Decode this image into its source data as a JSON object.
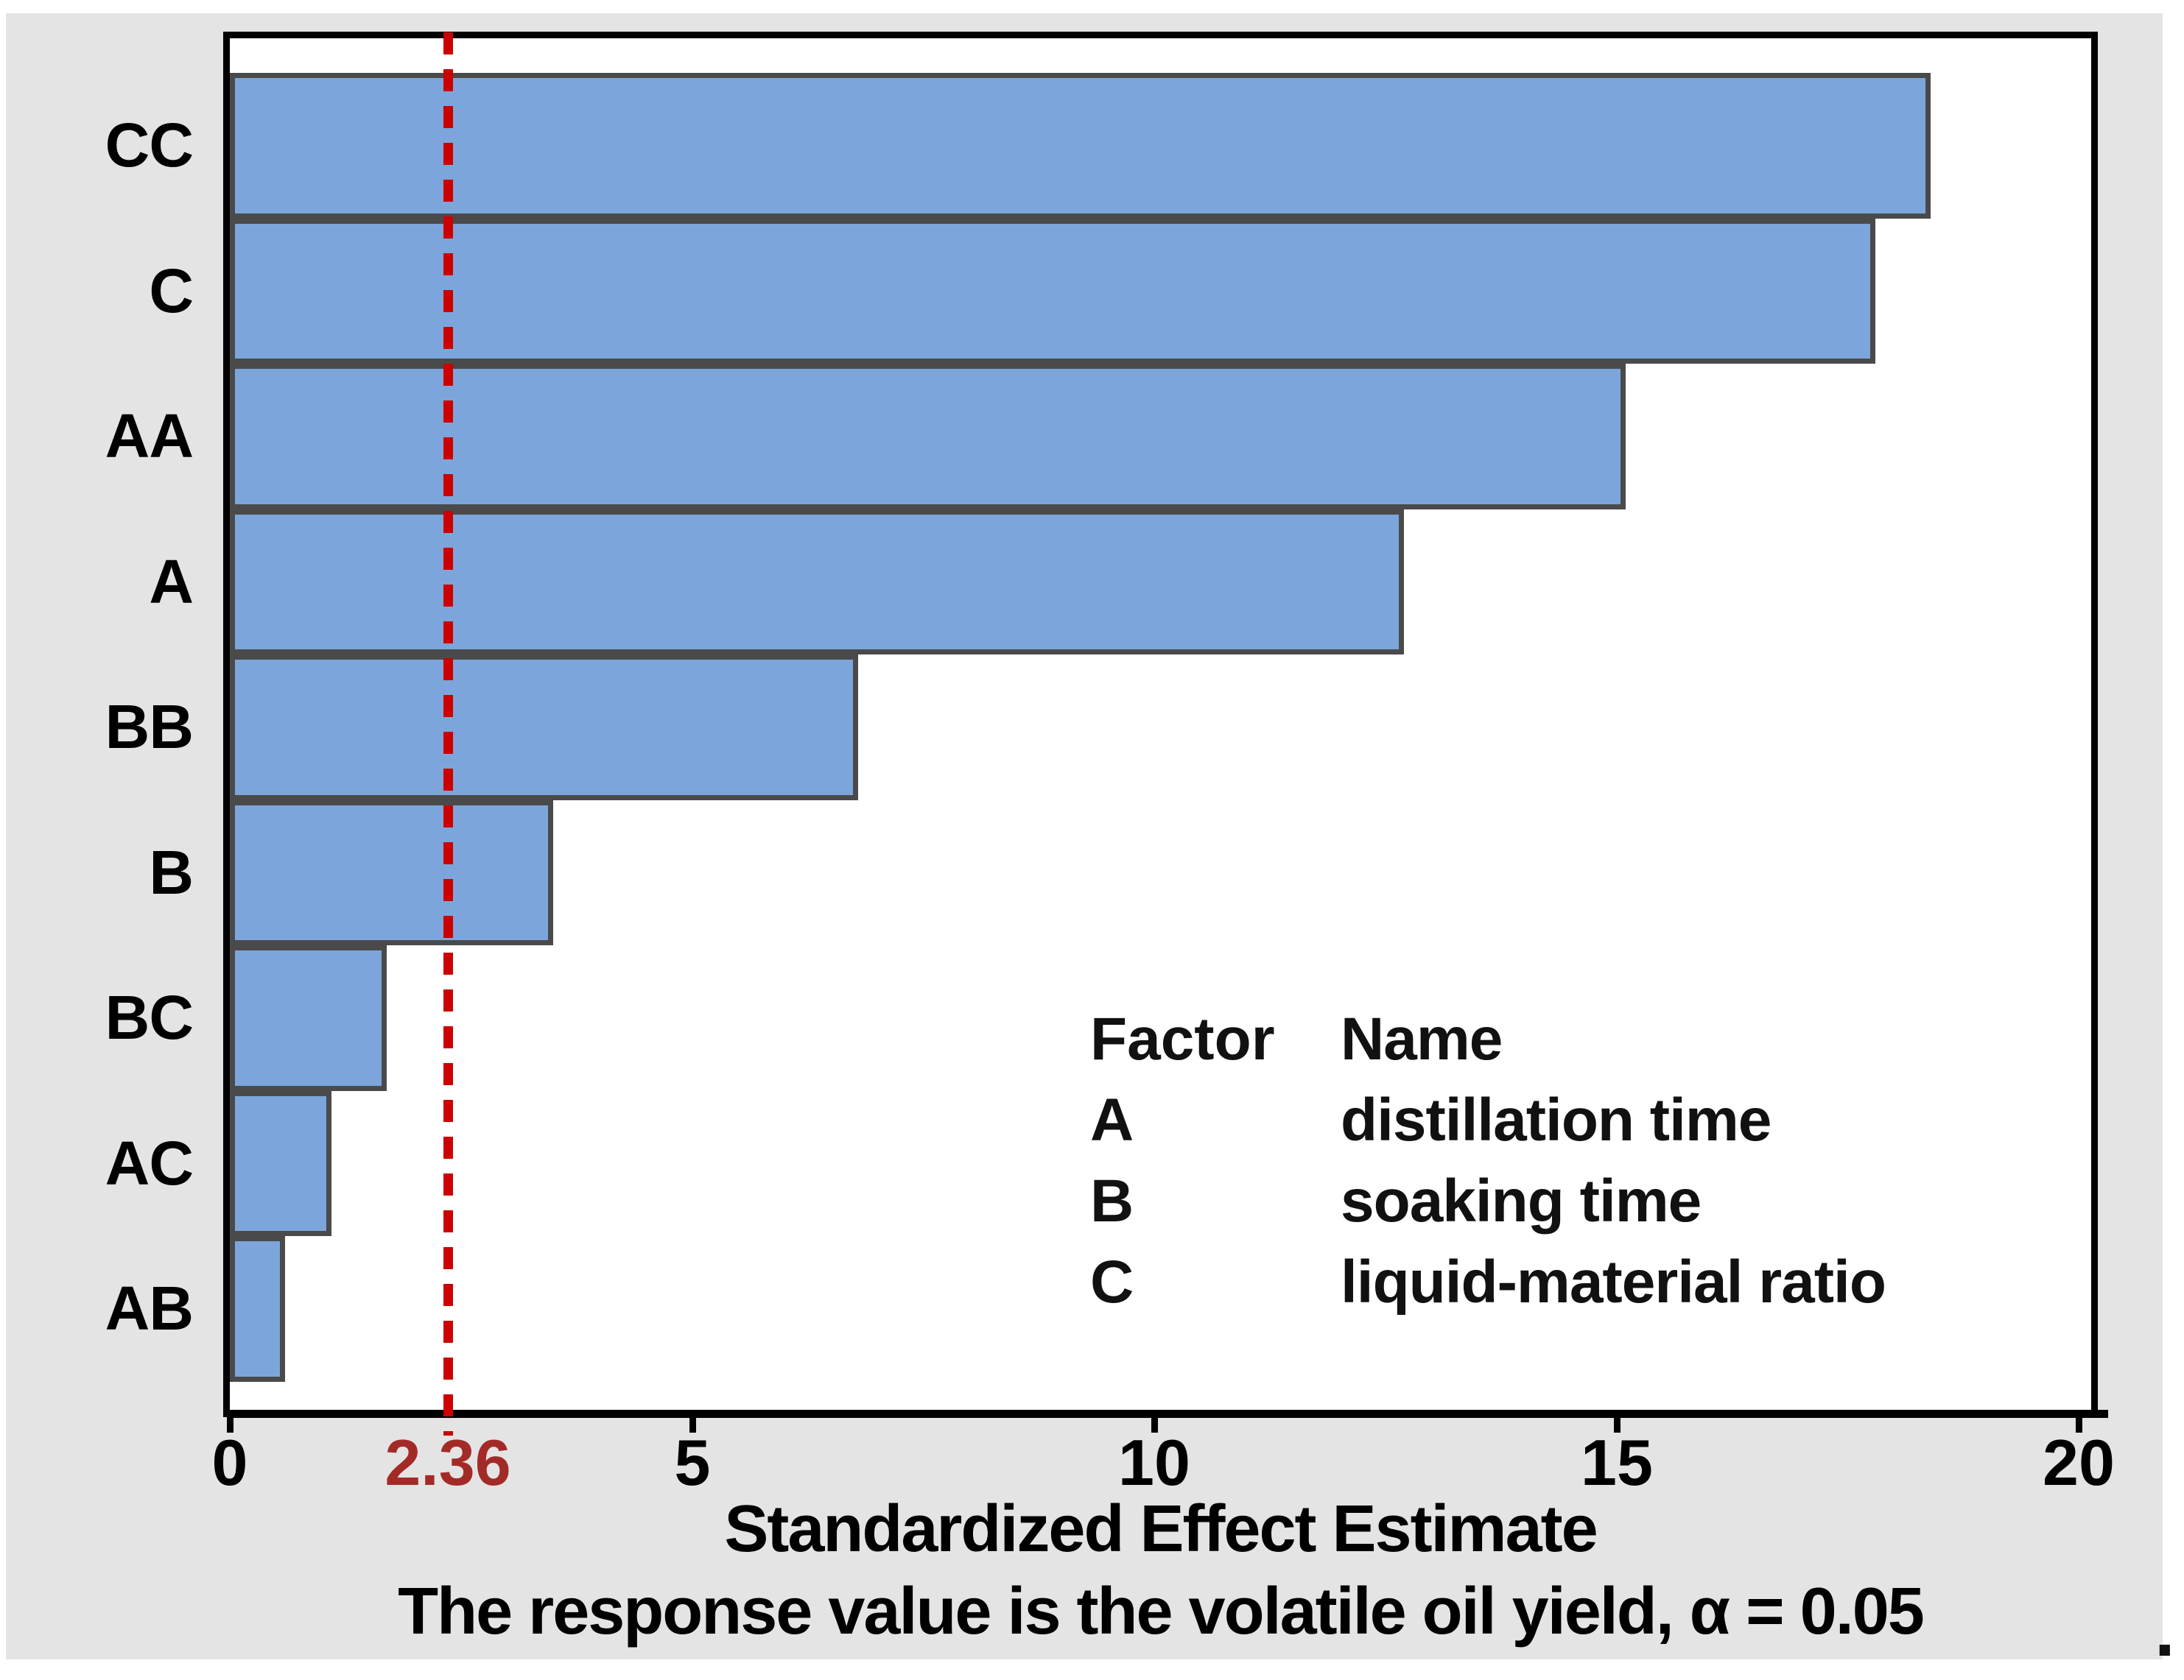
{
  "chart_data": {
    "type": "bar",
    "orientation": "horizontal",
    "xlabel": "Standardized Effect Estimate",
    "caption": "The response value is the volatile oil yield, α = 0.05",
    "categories": [
      "CC",
      "C",
      "AA",
      "A",
      "BB",
      "B",
      "BC",
      "AC",
      "AB"
    ],
    "values": [
      18.4,
      17.8,
      15.1,
      12.7,
      6.8,
      3.5,
      1.7,
      1.1,
      0.6
    ],
    "xlim": [
      0,
      20.1
    ],
    "xticks": [
      0,
      5,
      10,
      15,
      20
    ],
    "grid": false,
    "reference_line": {
      "value": 2.36,
      "label": "2.36"
    },
    "legend": {
      "position": "inside-right",
      "header": {
        "factor": "Factor",
        "name": "Name"
      },
      "items": [
        {
          "factor": "A",
          "name": "distillation time"
        },
        {
          "factor": "B",
          "name": "soaking time"
        },
        {
          "factor": "C",
          "name": "liquid-material ratio"
        }
      ]
    }
  },
  "colors": {
    "panel_background": "#E4E4E4",
    "plot_background": "#FFFFFF",
    "plot_border": "#000000",
    "bar_fill": "#7CA6DB",
    "bar_border": "#4A4A4A",
    "reference_line": "#CC0000",
    "reference_label": "#A32B27",
    "text": "#000000"
  },
  "footnote_dot": "."
}
